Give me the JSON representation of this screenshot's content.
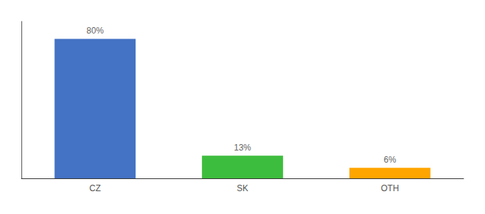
{
  "chart_data": {
    "type": "bar",
    "categories": [
      "CZ",
      "SK",
      "OTH"
    ],
    "values": [
      80,
      13,
      6
    ],
    "value_labels": [
      "80%",
      "13%",
      "6%"
    ],
    "colors": [
      "#4472C4",
      "#3DBD3D",
      "#FFA500"
    ],
    "ylim": [
      0,
      90
    ],
    "data_labels": true,
    "tick_labels": "x",
    "grid": false
  }
}
